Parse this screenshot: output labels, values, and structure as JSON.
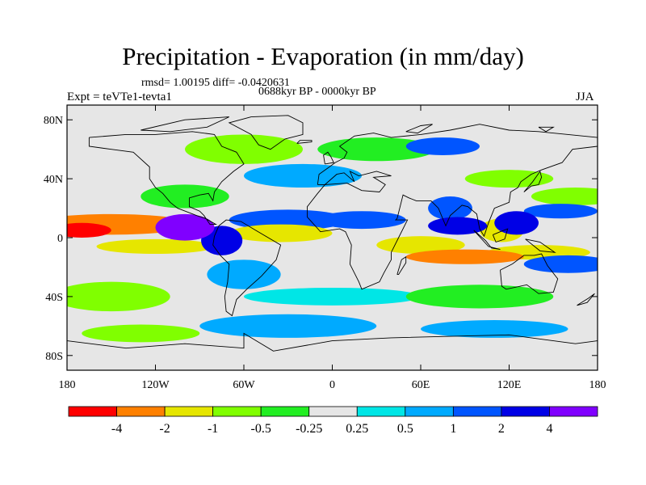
{
  "chart_data": {
    "type": "heatmap",
    "title": "Precipitation - Evaporation (in mm/day)",
    "stats_line": "rmsd= 1.00195 diff= -0.0420631",
    "period_line": "0688kyr BP - 0000kyr BP",
    "experiment_label": "Expt = teVTe1-tevta1",
    "season_label": "JJA",
    "x_axis": {
      "range": [
        -180,
        180
      ],
      "ticks": [
        {
          "value": -180,
          "label": "180"
        },
        {
          "value": -120,
          "label": "120W"
        },
        {
          "value": -60,
          "label": "60W"
        },
        {
          "value": 0,
          "label": "0"
        },
        {
          "value": 60,
          "label": "60E"
        },
        {
          "value": 120,
          "label": "120E"
        },
        {
          "value": 180,
          "label": "180"
        }
      ]
    },
    "y_axis": {
      "range": [
        -90,
        90
      ],
      "ticks": [
        {
          "value": 80,
          "label": "80N"
        },
        {
          "value": 40,
          "label": "40N"
        },
        {
          "value": 0,
          "label": "0"
        },
        {
          "value": -40,
          "label": "40S"
        },
        {
          "value": -80,
          "label": "80S"
        }
      ]
    },
    "colorbar": {
      "levels": [
        "-4",
        "-2",
        "-1",
        "-0.5",
        "-0.25",
        "0.25",
        "0.5",
        "1",
        "2",
        "4"
      ],
      "colors": [
        "#ff0000",
        "#ff8000",
        "#e6e600",
        "#80ff00",
        "#22ee22",
        "#e6e6e6",
        "#00e6e6",
        "#00aaff",
        "#0055ff",
        "#0000e6",
        "#8000ff"
      ]
    },
    "field_features": [
      {
        "lon": -150,
        "lat": 9,
        "w": 55,
        "h": 7,
        "value": -3
      },
      {
        "lon": -170,
        "lat": 5,
        "w": 20,
        "h": 5,
        "value": -5
      },
      {
        "lon": -100,
        "lat": 7,
        "w": 20,
        "h": 9,
        "value": 5
      },
      {
        "lon": -75,
        "lat": -2,
        "w": 14,
        "h": 10,
        "value": 3
      },
      {
        "lon": -120,
        "lat": -6,
        "w": 40,
        "h": 5,
        "value": -1.5
      },
      {
        "lon": -35,
        "lat": 3,
        "w": 35,
        "h": 6,
        "value": -2
      },
      {
        "lon": -30,
        "lat": 12,
        "w": 40,
        "h": 7,
        "value": 1.5
      },
      {
        "lon": 20,
        "lat": 12,
        "w": 30,
        "h": 6,
        "value": 1.5
      },
      {
        "lon": -60,
        "lat": -25,
        "w": 25,
        "h": 10,
        "value": 0.7
      },
      {
        "lon": -20,
        "lat": 42,
        "w": 40,
        "h": 8,
        "value": 0.7
      },
      {
        "lon": 80,
        "lat": 20,
        "w": 15,
        "h": 8,
        "value": 1.5
      },
      {
        "lon": 85,
        "lat": 8,
        "w": 20,
        "h": 6,
        "value": 3
      },
      {
        "lon": 115,
        "lat": 5,
        "w": 15,
        "h": 8,
        "value": -2
      },
      {
        "lon": 125,
        "lat": 10,
        "w": 15,
        "h": 8,
        "value": 3
      },
      {
        "lon": 155,
        "lat": 18,
        "w": 25,
        "h": 5,
        "value": 1.5
      },
      {
        "lon": 165,
        "lat": 28,
        "w": 30,
        "h": 6,
        "value": -0.7
      },
      {
        "lon": 90,
        "lat": -13,
        "w": 40,
        "h": 5,
        "value": -2.5
      },
      {
        "lon": 140,
        "lat": -10,
        "w": 35,
        "h": 5,
        "value": -1.5
      },
      {
        "lon": 75,
        "lat": 62,
        "w": 25,
        "h": 6,
        "value": 1.5
      },
      {
        "lon": 160,
        "lat": -18,
        "w": 30,
        "h": 6,
        "value": 1.5
      },
      {
        "lon": -60,
        "lat": 60,
        "w": 40,
        "h": 10,
        "value": -0.7
      },
      {
        "lon": 30,
        "lat": 60,
        "w": 40,
        "h": 8,
        "value": -0.4
      },
      {
        "lon": 120,
        "lat": 40,
        "w": 30,
        "h": 6,
        "value": -0.7
      },
      {
        "lon": 0,
        "lat": -40,
        "w": 60,
        "h": 6,
        "value": 0.4
      },
      {
        "lon": 100,
        "lat": -40,
        "w": 50,
        "h": 8,
        "value": -0.4
      },
      {
        "lon": -150,
        "lat": -40,
        "w": 40,
        "h": 10,
        "value": -0.7
      },
      {
        "lon": -30,
        "lat": -60,
        "w": 60,
        "h": 8,
        "value": 0.7
      },
      {
        "lon": 110,
        "lat": -62,
        "w": 50,
        "h": 6,
        "value": 0.7
      },
      {
        "lon": -130,
        "lat": -65,
        "w": 40,
        "h": 6,
        "value": -0.6
      },
      {
        "lon": -100,
        "lat": 28,
        "w": 30,
        "h": 8,
        "value": -0.4
      },
      {
        "lon": 60,
        "lat": -5,
        "w": 30,
        "h": 6,
        "value": -1.2
      }
    ]
  }
}
